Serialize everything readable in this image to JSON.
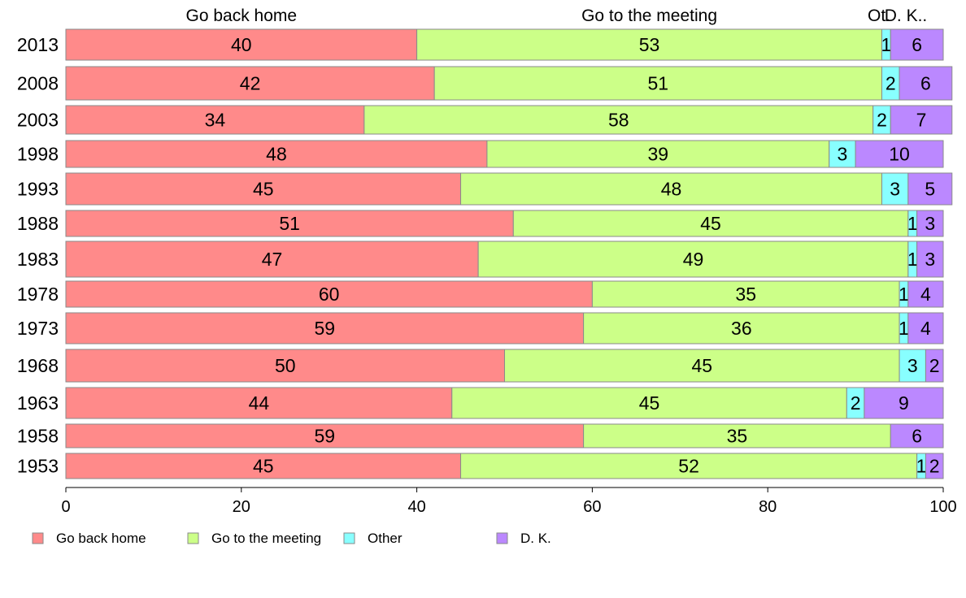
{
  "chart_data": {
    "type": "bar",
    "orientation": "horizontal",
    "stacked": true,
    "categories": [
      "2013",
      "2008",
      "2003",
      "1998",
      "1993",
      "1988",
      "1983",
      "1978",
      "1973",
      "1968",
      "1963",
      "1958",
      "1953"
    ],
    "series": [
      {
        "name": "Go back home",
        "color": "#ff8a8a",
        "values": [
          40,
          42,
          34,
          48,
          45,
          51,
          47,
          60,
          59,
          50,
          44,
          59,
          45
        ]
      },
      {
        "name": "Go to the meeting",
        "color": "#ccff88",
        "values": [
          53,
          51,
          58,
          39,
          48,
          45,
          49,
          35,
          36,
          45,
          45,
          35,
          52
        ]
      },
      {
        "name": "Other",
        "color": "#88ffff",
        "values": [
          1,
          2,
          2,
          3,
          3,
          1,
          1,
          1,
          1,
          3,
          2,
          0,
          1
        ]
      },
      {
        "name": "D. K.",
        "color": "#bb88ff",
        "values": [
          6,
          6,
          7,
          10,
          5,
          3,
          3,
          4,
          4,
          2,
          9,
          6,
          2
        ]
      }
    ],
    "top_labels": [
      "Go back home",
      "Go to the meeting",
      "Ot.",
      "D. K.."
    ],
    "legend_labels": [
      "Go back home",
      "Go to the meeting",
      "Other",
      "D. K."
    ],
    "xlim": [
      0,
      100
    ],
    "xticks": [
      0,
      20,
      40,
      60,
      80,
      100
    ],
    "legend_position": "bottom-left",
    "grid": false
  }
}
